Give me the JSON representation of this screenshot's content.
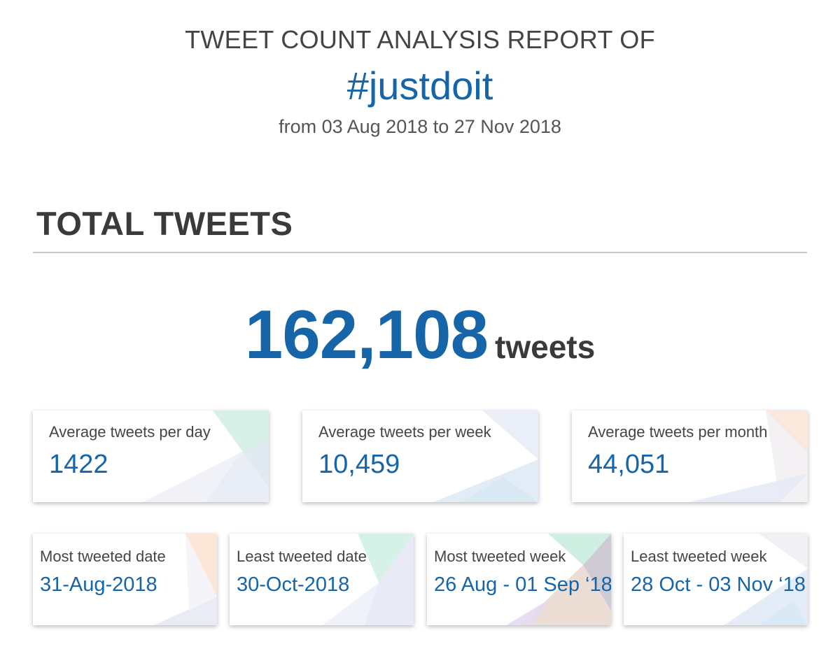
{
  "header": {
    "report_title": "TWEET COUNT ANALYSIS REPORT OF",
    "hashtag": "#justdoit",
    "date_range": "from 03 Aug 2018 to 27 Nov 2018"
  },
  "section": {
    "title": "TOTAL TWEETS"
  },
  "total": {
    "value": "162,108",
    "unit": "tweets"
  },
  "averages": [
    {
      "label": "Average tweets per day",
      "value": "1422"
    },
    {
      "label": "Average tweets per week",
      "value": "10,459"
    },
    {
      "label": "Average tweets per month",
      "value": "44,051"
    }
  ],
  "extremes": [
    {
      "label": "Most tweeted date",
      "value": "31-Aug-2018"
    },
    {
      "label": "Least tweeted date",
      "value": "30-Oct-2018"
    },
    {
      "label": "Most tweeted week",
      "value": "26 Aug - 01 Sep ‘18"
    },
    {
      "label": "Least tweeted week",
      "value": "28 Oct - 03 Nov ‘18"
    }
  ],
  "colors": {
    "accent": "#1565a8",
    "text": "#404040",
    "rule": "#c8c8c8"
  }
}
